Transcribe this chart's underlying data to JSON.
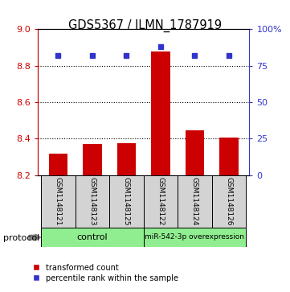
{
  "title": "GDS5367 / ILMN_1787919",
  "samples": [
    "GSM1148121",
    "GSM1148123",
    "GSM1148125",
    "GSM1148122",
    "GSM1148124",
    "GSM1148126"
  ],
  "transformed_counts": [
    8.32,
    8.37,
    8.375,
    8.88,
    8.445,
    8.405
  ],
  "percentile_ranks": [
    82,
    82,
    82,
    88,
    82,
    82
  ],
  "y_min": 8.2,
  "y_max": 9.0,
  "y_ticks": [
    8.2,
    8.4,
    8.6,
    8.8,
    9.0
  ],
  "right_y_ticks": [
    0,
    25,
    50,
    75,
    100
  ],
  "right_y_tick_labels": [
    "0",
    "25",
    "50",
    "75",
    "100%"
  ],
  "bar_color": "#cc0000",
  "dot_color": "#3333cc",
  "grid_color": "#000000",
  "label_bg_color": "#d3d3d3",
  "group_color": "#90ee90",
  "control_label": "control",
  "overexp_label": "miR-542-3p overexpression",
  "protocol_label": "protocol",
  "legend_red_label": "transformed count",
  "legend_blue_label": "percentile rank within the sample",
  "bar_width": 0.55,
  "percentile_scale_max": 100
}
